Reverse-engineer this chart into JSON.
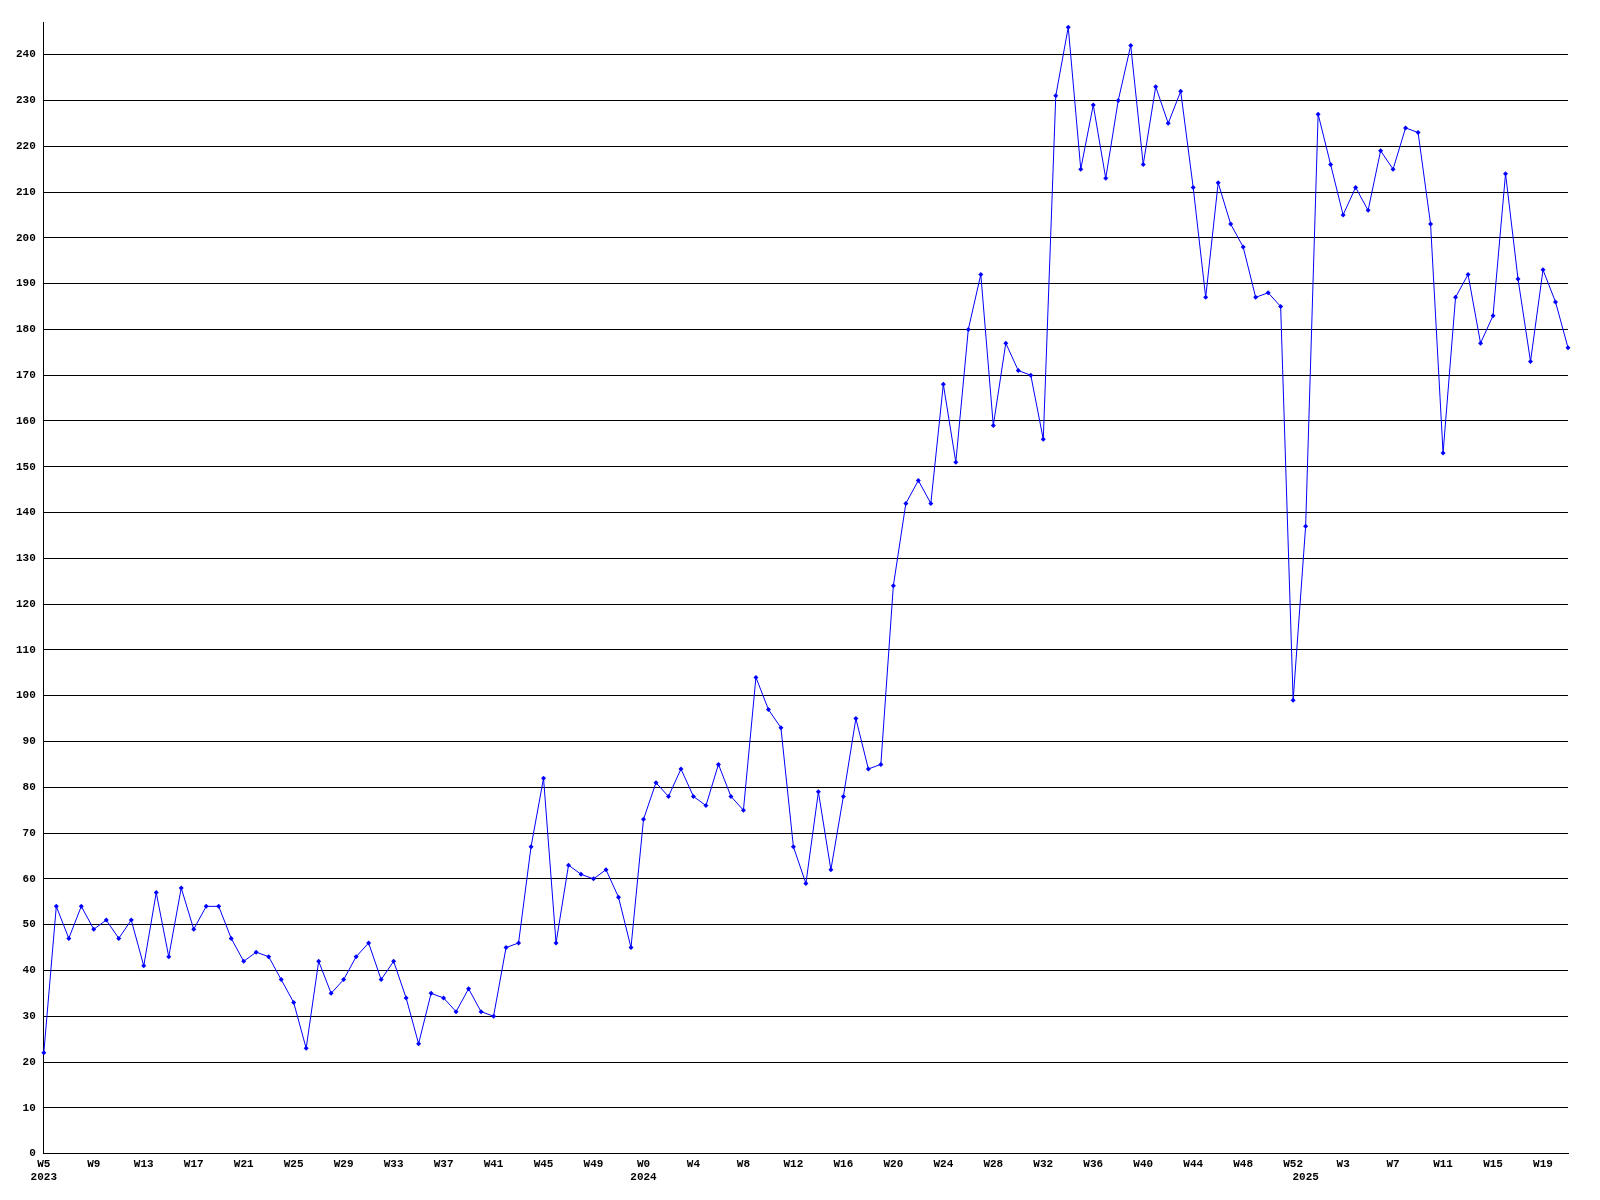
{
  "chart_data": {
    "type": "line",
    "categories": [
      "W5\n2023",
      null,
      null,
      null,
      "W9",
      null,
      null,
      null,
      "W13",
      null,
      null,
      null,
      "W17",
      null,
      null,
      null,
      "W21",
      null,
      null,
      null,
      "W25",
      null,
      null,
      null,
      "W29",
      null,
      null,
      null,
      "W33",
      null,
      null,
      null,
      "W37",
      null,
      null,
      null,
      "W41",
      null,
      null,
      null,
      "W45",
      null,
      null,
      null,
      "W49",
      null,
      null,
      null,
      "W0\n2024",
      null,
      null,
      null,
      "W4",
      null,
      null,
      null,
      "W8",
      null,
      null,
      null,
      "W12",
      null,
      null,
      null,
      "W16",
      null,
      null,
      null,
      "W20",
      null,
      null,
      null,
      "W24",
      null,
      null,
      null,
      "W28",
      null,
      null,
      null,
      "W32",
      null,
      null,
      null,
      "W36",
      null,
      null,
      null,
      "W40",
      null,
      null,
      null,
      "W44",
      null,
      null,
      null,
      "W48",
      null,
      null,
      null,
      "W52",
      "\n2025",
      null,
      null,
      "W3",
      null,
      null,
      null,
      "W7",
      null,
      null,
      null,
      "W11",
      null,
      null,
      null,
      "W15",
      null,
      null,
      null,
      "W19",
      null,
      null
    ],
    "series": [
      {
        "color": "#0000ff",
        "values": [
          22,
          54,
          47,
          54,
          49,
          51,
          47,
          51,
          41,
          57,
          43,
          58,
          49,
          54,
          54,
          47,
          42,
          44,
          43,
          38,
          33,
          23,
          42,
          35,
          38,
          43,
          46,
          38,
          42,
          34,
          24,
          35,
          34,
          31,
          36,
          31,
          30,
          45,
          46,
          67,
          82,
          46,
          63,
          61,
          60,
          62,
          56,
          45,
          73,
          81,
          78,
          84,
          78,
          76,
          85,
          78,
          75,
          104,
          97,
          93,
          67,
          59,
          79,
          62,
          78,
          95,
          84,
          85,
          124,
          142,
          147,
          142,
          168,
          151,
          180,
          192,
          159,
          177,
          171,
          170,
          156,
          231,
          246,
          215,
          229,
          213,
          230,
          242,
          216,
          233,
          225,
          232,
          211,
          187,
          212,
          203,
          198,
          187,
          188,
          185,
          99,
          137,
          227,
          216,
          205,
          211,
          206,
          219,
          215,
          224,
          223,
          203,
          153,
          187,
          192,
          177,
          183,
          214,
          191,
          173,
          193,
          186,
          176
        ]
      }
    ],
    "ylim": [
      0,
      247
    ],
    "yticks": [
      0,
      10,
      20,
      30,
      40,
      50,
      60,
      70,
      80,
      90,
      100,
      110,
      120,
      130,
      140,
      150,
      160,
      170,
      180,
      190,
      200,
      210,
      220,
      230,
      240
    ],
    "grid": "y",
    "marker": "diamond",
    "line_style": "solid",
    "legend": false
  }
}
